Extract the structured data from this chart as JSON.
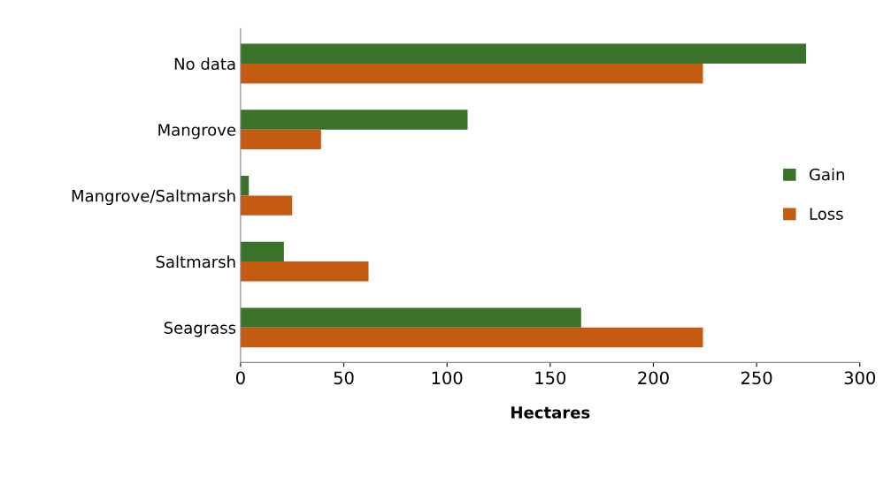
{
  "chart_data": {
    "type": "bar",
    "orientation": "horizontal",
    "xlabel": "Hectares",
    "categories": [
      "No data",
      "Mangrove",
      "Mangrove/Saltmarsh",
      "Saltmarsh",
      "Seagrass"
    ],
    "series": [
      {
        "name": "Gain",
        "color": "#3a7229",
        "values": [
          274,
          110,
          4,
          21,
          165
        ]
      },
      {
        "name": "Loss",
        "color": "#c55a11",
        "values": [
          224,
          39,
          25,
          62,
          224
        ]
      }
    ],
    "xlim": [
      0,
      300
    ],
    "xticks": [
      0,
      50,
      100,
      150,
      200,
      250,
      300
    ],
    "grid": false,
    "legend": "right"
  }
}
